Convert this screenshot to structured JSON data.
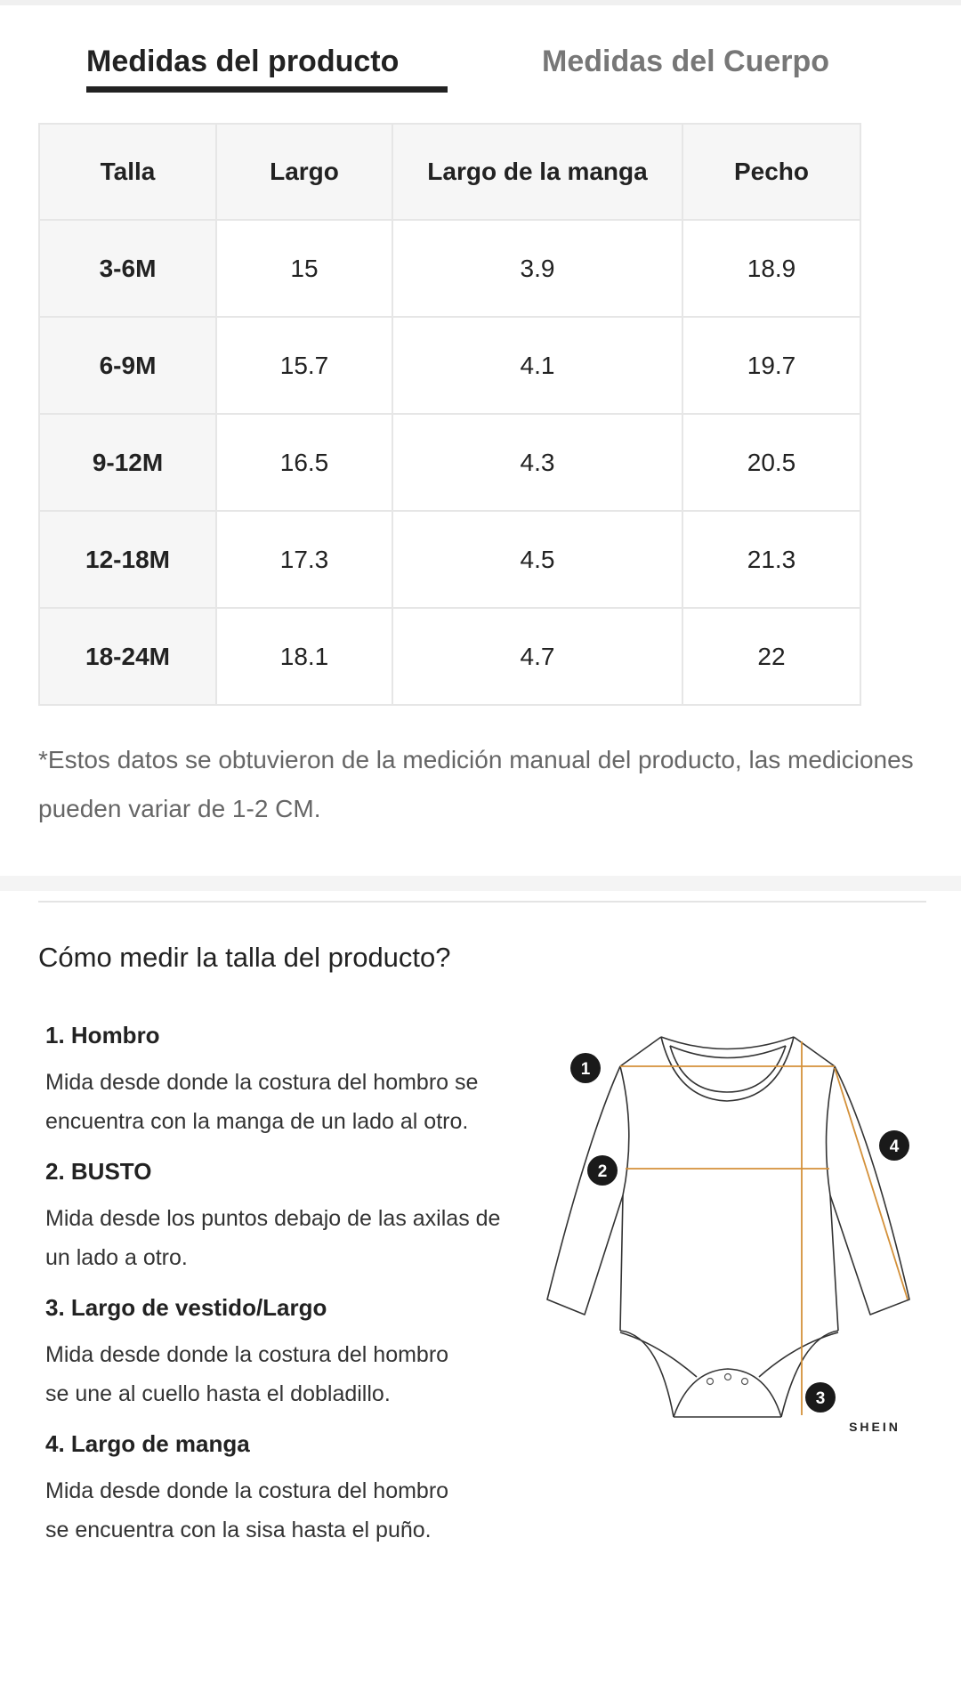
{
  "tabs": [
    {
      "label": "Medidas del producto",
      "active": true
    },
    {
      "label": "Medidas del Cuerpo",
      "active": false
    }
  ],
  "table": {
    "headers": [
      "Talla",
      "Largo",
      "Largo de la manga",
      "Pecho"
    ],
    "rows": [
      [
        "3-6M",
        "15",
        "3.9",
        "18.9"
      ],
      [
        "6-9M",
        "15.7",
        "4.1",
        "19.7"
      ],
      [
        "9-12M",
        "16.5",
        "4.3",
        "20.5"
      ],
      [
        "12-18M",
        "17.3",
        "4.5",
        "21.3"
      ],
      [
        "18-24M",
        "18.1",
        "4.7",
        "22"
      ]
    ]
  },
  "note": "*Estos datos se obtuvieron de la medición manual del producto, las mediciones pueden variar de 1-2 CM.",
  "how_to": {
    "title": "Cómo medir la talla del producto?",
    "steps": [
      {
        "title": "1. Hombro",
        "desc": "Mida desde donde la costura del hombro se encuentra con la manga de un lado al otro."
      },
      {
        "title": "2. BUSTO",
        "desc": "Mida desde los puntos debajo de las axilas de un lado a otro."
      },
      {
        "title": "3. Largo de vestido/Largo",
        "desc": "Mida desde donde la costura del hombro se une al cuello hasta el dobladillo."
      },
      {
        "title": "4. Largo de manga",
        "desc": "Mida desde donde la costura del hombro se encuentra con la sisa hasta el puño."
      }
    ]
  },
  "diagram": {
    "badges": [
      "1",
      "2",
      "3",
      "4"
    ],
    "brand": "SHEIN",
    "measure_color": "#d4913a"
  }
}
